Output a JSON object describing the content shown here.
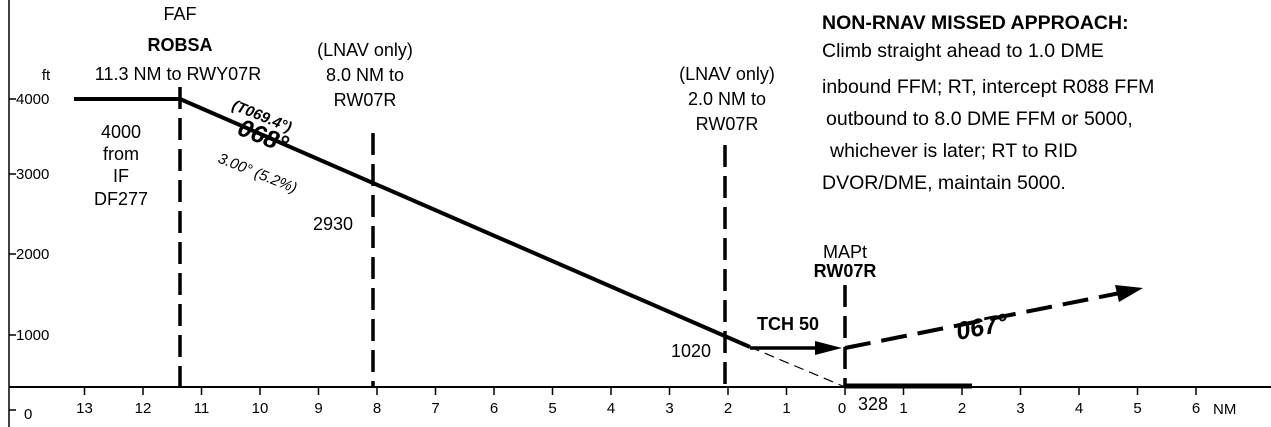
{
  "altitude_unit": "ft",
  "altitude_ticks": [
    "4000",
    "3000",
    "2000",
    "1000",
    "0"
  ],
  "distance_ticks": [
    "13",
    "12",
    "11",
    "10",
    "9",
    "8",
    "7",
    "6",
    "5",
    "4",
    "3",
    "2",
    "1",
    "0",
    "1",
    "2",
    "3",
    "4",
    "5",
    "6"
  ],
  "distance_unit": "NM",
  "faf": {
    "label": "FAF",
    "name": "ROBSA",
    "distance": "11.3 NM to RWY07R"
  },
  "initial_altitude": {
    "lines": [
      "4000",
      "from",
      "IF",
      "DF277"
    ]
  },
  "lnav_8nm": {
    "lines": [
      "(LNAV only)",
      "8.0 NM to",
      "RW07R"
    ],
    "altitude": "2930"
  },
  "lnav_2nm": {
    "lines": [
      "(LNAV only)",
      "2.0 NM to",
      "RW07R"
    ],
    "altitude": "1020"
  },
  "descent": {
    "true_course": "(T069.4°)",
    "course": "068°",
    "angle": "3.00° (5.2%)"
  },
  "mapt": {
    "label": "MAPt",
    "name": "RW07R",
    "tch": "TCH 50",
    "elevation": "328"
  },
  "missed_course": "067°",
  "missed_approach": {
    "title": "NON-RNAV MISSED APPROACH:",
    "lines": [
      "Climb straight ahead to 1.0 DME",
      "inbound FFM; RT, intercept R088 FFM",
      "outbound to 8.0 DME FFM or 5000,",
      "whichever is later; RT to RID",
      "DVOR/DME, maintain 5000."
    ]
  },
  "profile_data": {
    "type": "vertical-profile",
    "x_axis": {
      "unit": "NM",
      "from_runway_range": [
        13,
        -6
      ]
    },
    "y_axis": {
      "unit": "ft",
      "ticks": [
        0,
        1000,
        2000,
        3000,
        4000
      ]
    },
    "fixes": [
      {
        "name": "ROBSA",
        "role": "FAF",
        "distance_nm": 11.3,
        "altitude_ft": 4000
      },
      {
        "name": "LNAV stepdown",
        "distance_nm": 8.0,
        "altitude_ft": 2930
      },
      {
        "name": "LNAV stepdown",
        "distance_nm": 2.0,
        "altitude_ft": 1020
      },
      {
        "name": "RW07R",
        "role": "MAPt",
        "distance_nm": 0,
        "threshold_crossing_height_ft": 50,
        "elevation_ft": 328
      }
    ],
    "glide_angle_deg": 3.0,
    "gradient_percent": 5.2
  }
}
